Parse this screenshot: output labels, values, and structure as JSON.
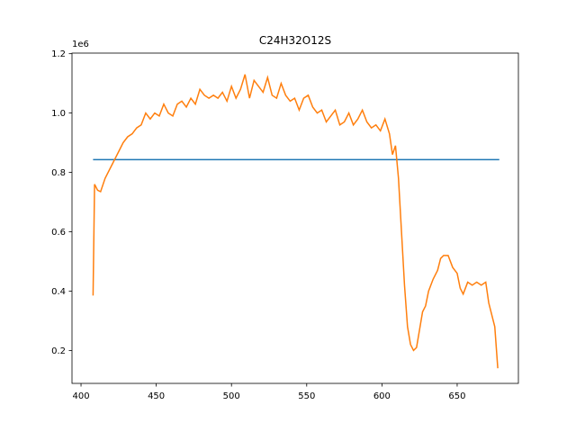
{
  "chart_data": {
    "type": "line",
    "title": "C24H32O12S",
    "y_offset_label": "1e6",
    "xlim": [
      394.0,
      690.7
    ],
    "ylim": [
      0.089,
      1.202
    ],
    "xticks": [
      400,
      450,
      500,
      550,
      600,
      650
    ],
    "yticks": [
      0.2,
      0.4,
      0.6,
      0.8,
      {
        "value": 1.0,
        "label": "1.0"
      },
      1.2
    ],
    "series": [
      {
        "color": "#1f77b4",
        "x": [
          408,
          678
        ],
        "values": [
          0.843,
          0.843
        ]
      },
      {
        "color": "#ff7f0e",
        "x": [
          408,
          409,
          411,
          413,
          416,
          419,
          422,
          425,
          428,
          431,
          434,
          437,
          440,
          443,
          446,
          449,
          452,
          455,
          458,
          461,
          464,
          467,
          470,
          473,
          476,
          479,
          482,
          485,
          488,
          491,
          494,
          497,
          500,
          503,
          506,
          509,
          512,
          515,
          518,
          521,
          524,
          527,
          530,
          533,
          536,
          539,
          542,
          545,
          548,
          551,
          554,
          557,
          560,
          563,
          566,
          569,
          572,
          575,
          578,
          581,
          584,
          587,
          590,
          593,
          596,
          599,
          602,
          605,
          607,
          609,
          611,
          613,
          615,
          617,
          619,
          621,
          623,
          625,
          627,
          629,
          631,
          634,
          637,
          639,
          641,
          644,
          647,
          650,
          652,
          654,
          657,
          660,
          663,
          666,
          669,
          671,
          673,
          675,
          677
        ],
        "values": [
          0.385,
          0.76,
          0.74,
          0.735,
          0.78,
          0.81,
          0.84,
          0.87,
          0.9,
          0.92,
          0.93,
          0.95,
          0.96,
          1.0,
          0.98,
          1.0,
          0.99,
          1.03,
          1.0,
          0.99,
          1.03,
          1.04,
          1.02,
          1.05,
          1.03,
          1.08,
          1.06,
          1.05,
          1.06,
          1.05,
          1.07,
          1.04,
          1.09,
          1.05,
          1.08,
          1.13,
          1.05,
          1.11,
          1.09,
          1.07,
          1.12,
          1.06,
          1.05,
          1.1,
          1.06,
          1.04,
          1.05,
          1.01,
          1.05,
          1.06,
          1.02,
          1.0,
          1.01,
          0.97,
          0.99,
          1.01,
          0.96,
          0.97,
          1.0,
          0.96,
          0.98,
          1.01,
          0.97,
          0.95,
          0.96,
          0.94,
          0.98,
          0.93,
          0.86,
          0.89,
          0.78,
          0.6,
          0.42,
          0.28,
          0.22,
          0.2,
          0.21,
          0.27,
          0.33,
          0.35,
          0.4,
          0.44,
          0.47,
          0.51,
          0.52,
          0.52,
          0.48,
          0.46,
          0.41,
          0.39,
          0.43,
          0.42,
          0.43,
          0.42,
          0.43,
          0.36,
          0.32,
          0.28,
          0.14
        ]
      }
    ]
  }
}
